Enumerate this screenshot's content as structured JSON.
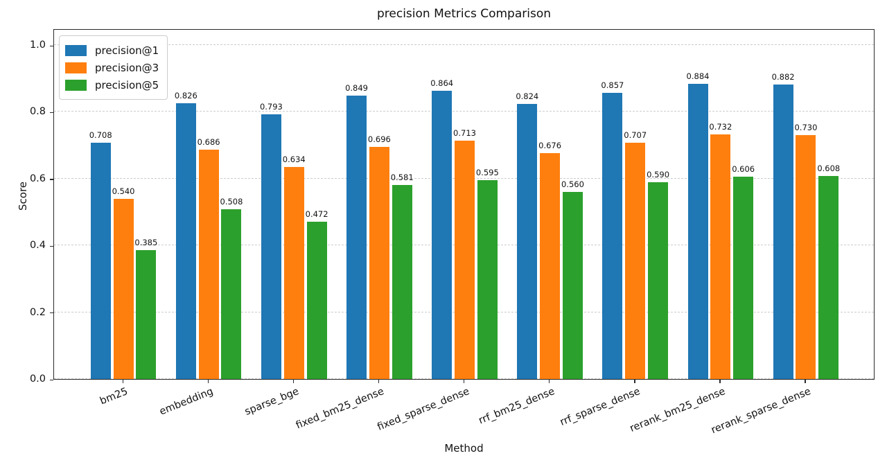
{
  "chart_data": {
    "type": "bar",
    "title": "precision Metrics Comparison",
    "xlabel": "Method",
    "ylabel": "Score",
    "categories": [
      "bm25",
      "embedding",
      "sparse_bge",
      "fixed_bm25_dense",
      "fixed_sparse_dense",
      "rrf_bm25_dense",
      "rrf_sparse_dense",
      "rerank_bm25_dense",
      "rerank_sparse_dense"
    ],
    "series": [
      {
        "name": "precision@1",
        "color": "#1f77b4",
        "values": [
          0.708,
          0.826,
          0.793,
          0.849,
          0.864,
          0.824,
          0.857,
          0.884,
          0.882
        ]
      },
      {
        "name": "precision@3",
        "color": "#ff7f0e",
        "values": [
          0.54,
          0.686,
          0.634,
          0.696,
          0.713,
          0.676,
          0.707,
          0.732,
          0.73
        ]
      },
      {
        "name": "precision@5",
        "color": "#2ca02c",
        "values": [
          0.385,
          0.508,
          0.472,
          0.581,
          0.595,
          0.56,
          0.59,
          0.606,
          0.608
        ]
      }
    ],
    "yticks": [
      0.0,
      0.2,
      0.4,
      0.6,
      0.8,
      1.0
    ],
    "ylim": [
      0,
      1.05
    ],
    "grid": "horizontal-dashed",
    "grid_color": "#cccccc",
    "legend_position": "upper-left",
    "value_label_decimals": 3,
    "ytick_decimals": 1,
    "xtick_rotation_deg": 22
  }
}
